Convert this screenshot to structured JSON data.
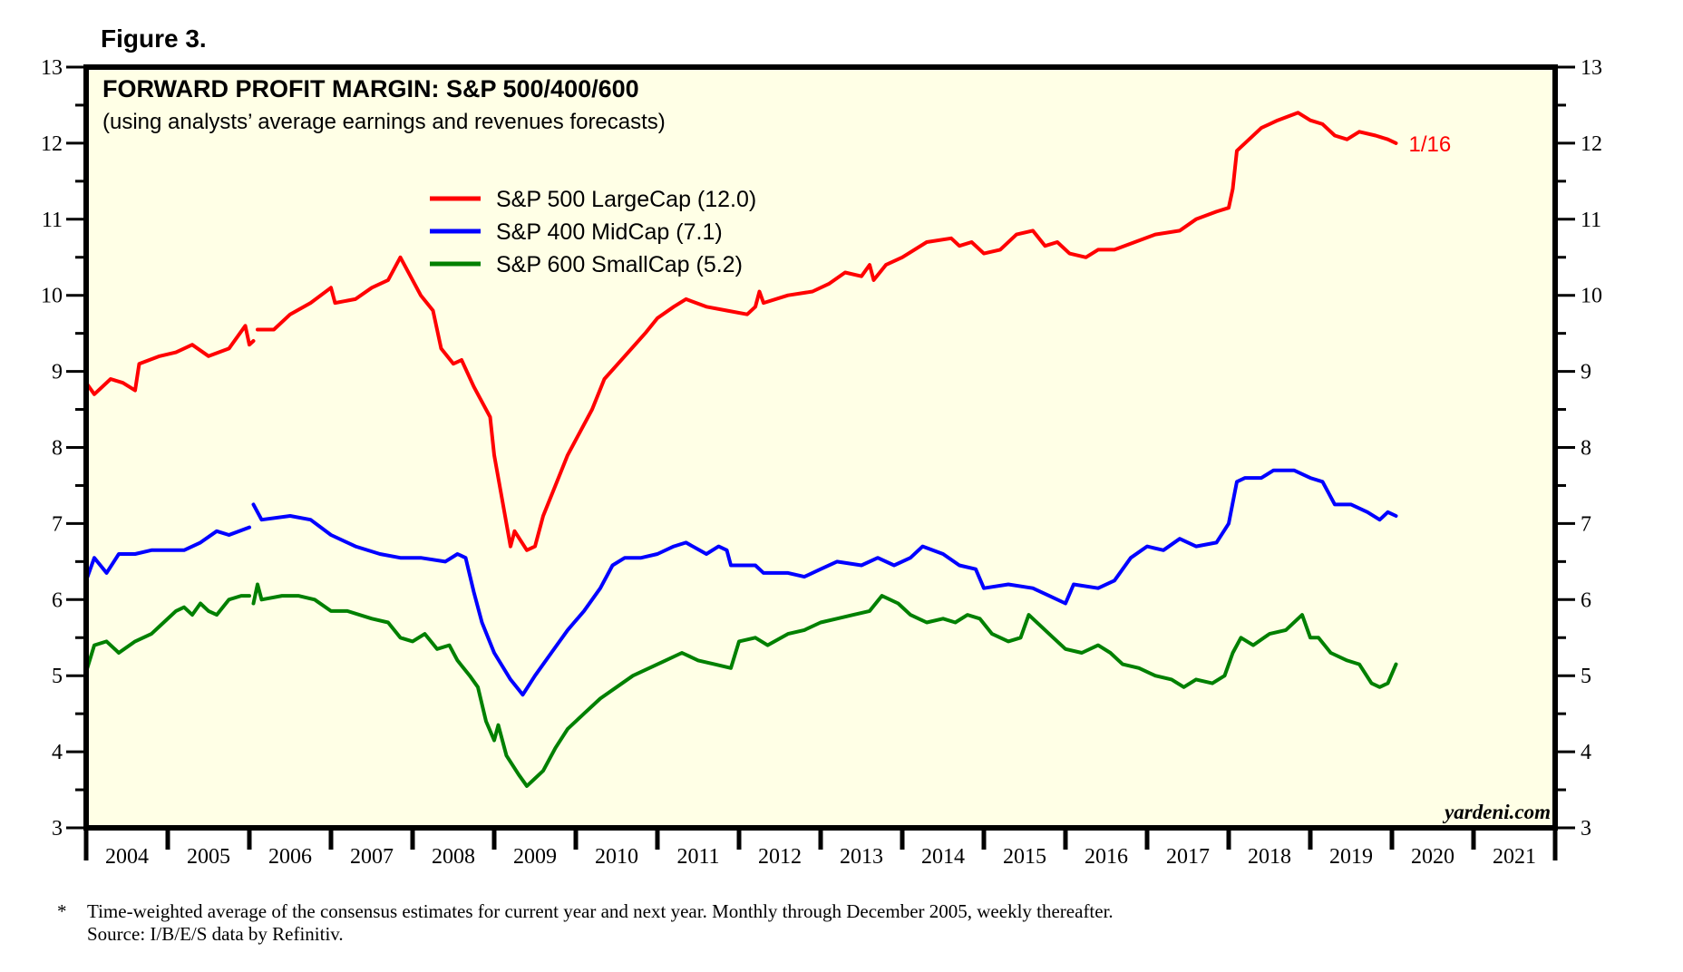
{
  "figure_label": "Figure 3.",
  "chart_data": {
    "type": "line",
    "title": "FORWARD PROFIT MARGIN: S&P 500/400/600",
    "subtitle": "(using analysts’ average earnings and revenues forecasts)",
    "xlabel": "",
    "ylabel": "",
    "xlim": [
      2004,
      2022
    ],
    "ylim": [
      3,
      13
    ],
    "y_ticks": [
      3,
      4,
      5,
      6,
      7,
      8,
      9,
      10,
      11,
      12,
      13
    ],
    "y_ticks_right": [
      3,
      4,
      5,
      6,
      7,
      8,
      9,
      10,
      11,
      12,
      13
    ],
    "x_tick_labels": [
      "2004",
      "2005",
      "2006",
      "2007",
      "2008",
      "2009",
      "2010",
      "2011",
      "2012",
      "2013",
      "2014",
      "2015",
      "2016",
      "2017",
      "2018",
      "2019",
      "2020",
      "2021"
    ],
    "grid": false,
    "background": "#ffffe6",
    "legend_position": "top-left",
    "end_label": "1/16",
    "watermark": "yardeni.com",
    "series": [
      {
        "name": "S&P 500 LargeCap (12.0)",
        "color": "#ff0000",
        "segments": [
          {
            "x": [
              2004.0,
              2004.1,
              2004.3,
              2004.45,
              2004.6,
              2004.65,
              2004.9,
              2005.1,
              2005.3,
              2005.5,
              2005.75,
              2005.95,
              2006.0,
              2006.05
            ],
            "y": [
              8.85,
              8.7,
              8.9,
              8.85,
              8.75,
              9.1,
              9.2,
              9.25,
              9.35,
              9.2,
              9.3,
              9.6,
              9.35,
              9.4
            ]
          },
          {
            "x": [
              2006.1,
              2006.3,
              2006.5,
              2006.75,
              2007.0,
              2007.05,
              2007.3,
              2007.5,
              2007.7,
              2007.85,
              2008.0,
              2008.1,
              2008.25,
              2008.35,
              2008.5,
              2008.6,
              2008.75,
              2008.95,
              2009.0,
              2009.1,
              2009.2,
              2009.25,
              2009.4,
              2009.5,
              2009.6,
              2009.75,
              2009.9,
              2010.0,
              2010.2,
              2010.35,
              2010.6,
              2010.85,
              2011.0,
              2011.2,
              2011.35,
              2011.6,
              2011.85,
              2012.1,
              2012.2,
              2012.25,
              2012.3,
              2012.6,
              2012.9,
              2013.1,
              2013.3,
              2013.5,
              2013.6,
              2013.65,
              2013.8,
              2014.0,
              2014.3,
              2014.6,
              2014.7,
              2014.85,
              2015.0,
              2015.2,
              2015.4,
              2015.6,
              2015.75,
              2015.9,
              2016.05,
              2016.25,
              2016.4,
              2016.6,
              2016.85,
              2017.1,
              2017.4,
              2017.6,
              2017.85,
              2018.0,
              2018.05,
              2018.1,
              2018.25,
              2018.4,
              2018.6,
              2018.85,
              2019.0,
              2019.15,
              2019.3,
              2019.45,
              2019.6,
              2019.8,
              2019.95,
              2020.05
            ],
            "y": [
              9.55,
              9.55,
              9.75,
              9.9,
              10.1,
              9.9,
              9.95,
              10.1,
              10.2,
              10.5,
              10.2,
              10.0,
              9.8,
              9.3,
              9.1,
              9.15,
              8.8,
              8.4,
              7.9,
              7.3,
              6.7,
              6.9,
              6.65,
              6.7,
              7.1,
              7.5,
              7.9,
              8.1,
              8.5,
              8.9,
              9.2,
              9.5,
              9.7,
              9.85,
              9.95,
              9.85,
              9.8,
              9.75,
              9.85,
              10.05,
              9.9,
              10.0,
              10.05,
              10.15,
              10.3,
              10.25,
              10.4,
              10.2,
              10.4,
              10.5,
              10.7,
              10.75,
              10.65,
              10.7,
              10.55,
              10.6,
              10.8,
              10.85,
              10.65,
              10.7,
              10.55,
              10.5,
              10.6,
              10.6,
              10.7,
              10.8,
              10.85,
              11.0,
              11.1,
              11.15,
              11.4,
              11.9,
              12.05,
              12.2,
              12.3,
              12.4,
              12.3,
              12.25,
              12.1,
              12.05,
              12.15,
              12.1,
              12.05,
              12.0
            ]
          }
        ]
      },
      {
        "name": "S&P 400 MidCap (7.1)",
        "color": "#0000ff",
        "segments": [
          {
            "x": [
              2004.0,
              2004.1,
              2004.25,
              2004.4,
              2004.6,
              2004.8,
              2005.0,
              2005.2,
              2005.4,
              2005.6,
              2005.75,
              2006.0
            ],
            "y": [
              6.25,
              6.55,
              6.35,
              6.6,
              6.6,
              6.65,
              6.65,
              6.65,
              6.75,
              6.9,
              6.85,
              6.95
            ]
          },
          {
            "x": [
              2006.05,
              2006.15,
              2006.5,
              2006.75,
              2007.0,
              2007.3,
              2007.6,
              2007.85,
              2008.1,
              2008.4,
              2008.55,
              2008.65,
              2008.75,
              2008.85,
              2009.0,
              2009.2,
              2009.35,
              2009.5,
              2009.7,
              2009.9,
              2010.1,
              2010.3,
              2010.45,
              2010.6,
              2010.8,
              2011.0,
              2011.2,
              2011.35,
              2011.6,
              2011.75,
              2011.85,
              2011.9,
              2012.2,
              2012.3,
              2012.6,
              2012.8,
              2013.0,
              2013.2,
              2013.5,
              2013.7,
              2013.9,
              2014.1,
              2014.25,
              2014.5,
              2014.7,
              2014.9,
              2015.0,
              2015.3,
              2015.6,
              2015.8,
              2016.0,
              2016.1,
              2016.4,
              2016.6,
              2016.8,
              2017.0,
              2017.2,
              2017.4,
              2017.6,
              2017.85,
              2018.0,
              2018.1,
              2018.2,
              2018.4,
              2018.55,
              2018.8,
              2019.0,
              2019.15,
              2019.3,
              2019.5,
              2019.7,
              2019.85,
              2019.95,
              2020.05
            ],
            "y": [
              7.25,
              7.05,
              7.1,
              7.05,
              6.85,
              6.7,
              6.6,
              6.55,
              6.55,
              6.5,
              6.6,
              6.55,
              6.1,
              5.7,
              5.3,
              4.95,
              4.75,
              5.0,
              5.3,
              5.6,
              5.85,
              6.15,
              6.45,
              6.55,
              6.55,
              6.6,
              6.7,
              6.75,
              6.6,
              6.7,
              6.65,
              6.45,
              6.45,
              6.35,
              6.35,
              6.3,
              6.4,
              6.5,
              6.45,
              6.55,
              6.45,
              6.55,
              6.7,
              6.6,
              6.45,
              6.4,
              6.15,
              6.2,
              6.15,
              6.05,
              5.95,
              6.2,
              6.15,
              6.25,
              6.55,
              6.7,
              6.65,
              6.8,
              6.7,
              6.75,
              7.0,
              7.55,
              7.6,
              7.6,
              7.7,
              7.7,
              7.6,
              7.55,
              7.25,
              7.25,
              7.15,
              7.05,
              7.15,
              7.1
            ]
          }
        ]
      },
      {
        "name": "S&P 600 SmallCap (5.2)",
        "color": "#008000",
        "segments": [
          {
            "x": [
              2004.0,
              2004.1,
              2004.25,
              2004.4,
              2004.6,
              2004.8,
              2004.95,
              2005.1,
              2005.2,
              2005.3,
              2005.4,
              2005.5,
              2005.6,
              2005.75,
              2005.9,
              2006.0
            ],
            "y": [
              5.05,
              5.4,
              5.45,
              5.3,
              5.45,
              5.55,
              5.7,
              5.85,
              5.9,
              5.8,
              5.95,
              5.85,
              5.8,
              6.0,
              6.05,
              6.05
            ]
          },
          {
            "x": [
              2006.05,
              2006.1,
              2006.15,
              2006.4,
              2006.6,
              2006.8,
              2007.0,
              2007.2,
              2007.5,
              2007.7,
              2007.85,
              2008.0,
              2008.15,
              2008.3,
              2008.45,
              2008.55,
              2008.7,
              2008.8,
              2008.9,
              2009.0,
              2009.05,
              2009.15,
              2009.3,
              2009.4,
              2009.5,
              2009.6,
              2009.75,
              2009.9,
              2010.1,
              2010.3,
              2010.5,
              2010.7,
              2010.9,
              2011.1,
              2011.3,
              2011.5,
              2011.7,
              2011.9,
              2012.0,
              2012.2,
              2012.35,
              2012.6,
              2012.8,
              2013.0,
              2013.2,
              2013.4,
              2013.6,
              2013.75,
              2013.95,
              2014.1,
              2014.3,
              2014.5,
              2014.65,
              2014.8,
              2014.95,
              2015.1,
              2015.3,
              2015.45,
              2015.55,
              2015.7,
              2015.85,
              2016.0,
              2016.2,
              2016.4,
              2016.55,
              2016.7,
              2016.9,
              2017.1,
              2017.3,
              2017.45,
              2017.6,
              2017.8,
              2017.95,
              2018.05,
              2018.15,
              2018.3,
              2018.5,
              2018.7,
              2018.9,
              2019.0,
              2019.1,
              2019.25,
              2019.45,
              2019.6,
              2019.75,
              2019.85,
              2019.95,
              2020.05
            ],
            "y": [
              5.95,
              6.2,
              6.0,
              6.05,
              6.05,
              6.0,
              5.85,
              5.85,
              5.75,
              5.7,
              5.5,
              5.45,
              5.55,
              5.35,
              5.4,
              5.2,
              5.0,
              4.85,
              4.4,
              4.15,
              4.35,
              3.95,
              3.7,
              3.55,
              3.65,
              3.75,
              4.05,
              4.3,
              4.5,
              4.7,
              4.85,
              5.0,
              5.1,
              5.2,
              5.3,
              5.2,
              5.15,
              5.1,
              5.45,
              5.5,
              5.4,
              5.55,
              5.6,
              5.7,
              5.75,
              5.8,
              5.85,
              6.05,
              5.95,
              5.8,
              5.7,
              5.75,
              5.7,
              5.8,
              5.75,
              5.55,
              5.45,
              5.5,
              5.8,
              5.65,
              5.5,
              5.35,
              5.3,
              5.4,
              5.3,
              5.15,
              5.1,
              5.0,
              4.95,
              4.85,
              4.95,
              4.9,
              5.0,
              5.3,
              5.5,
              5.4,
              5.55,
              5.6,
              5.8,
              5.5,
              5.5,
              5.3,
              5.2,
              5.15,
              4.9,
              4.85,
              4.9,
              5.15
            ]
          }
        ]
      }
    ]
  },
  "footnote": {
    "marker": "*",
    "line1": "Time-weighted average of the consensus estimates for current year and next year. Monthly through December 2005, weekly thereafter.",
    "line2": "Source: I/B/E/S data by Refinitiv."
  }
}
